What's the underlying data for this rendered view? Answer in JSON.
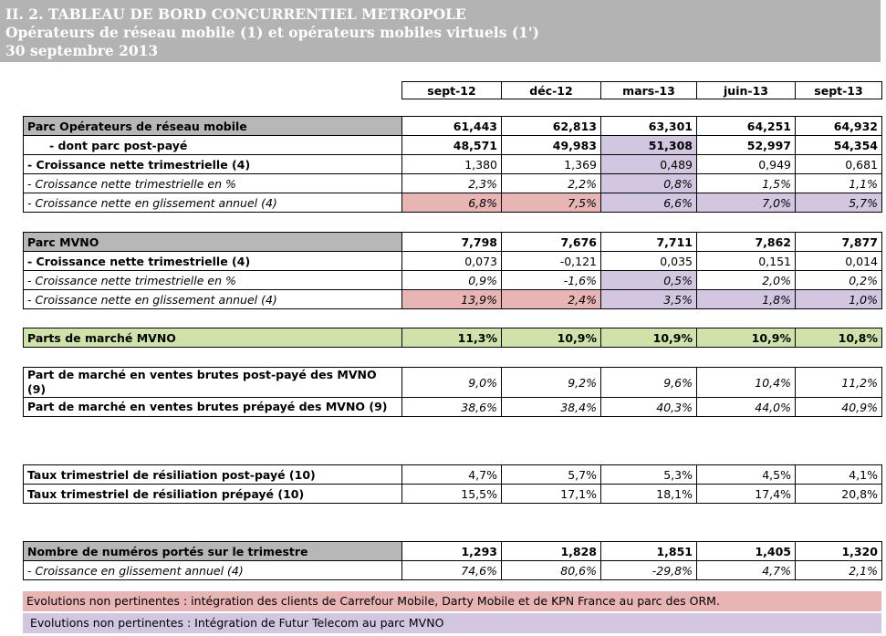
{
  "banner": {
    "title": "II. 2. TABLEAU DE BORD CONCURRENTIEL METROPOLE",
    "subtitle": "Opérateurs de réseau mobile (1) et opérateurs mobiles virtuels (1')",
    "date": "30 septembre 2013"
  },
  "columns": [
    "sept-12",
    "déc-12",
    "mars-13",
    "juin-13",
    "sept-13"
  ],
  "colors": {
    "grey": "#b7b7b7",
    "pink": "#e9b4b4",
    "lavender": "#d2c6e1",
    "green": "#cfe3a8"
  },
  "block1": {
    "rows": [
      {
        "label": "Parc Opérateurs de réseau mobile",
        "values": [
          "61,443",
          "62,813",
          "63,301",
          "64,251",
          "64,932"
        ]
      },
      {
        "label": "- dont parc post-payé",
        "values": [
          "48,571",
          "49,983",
          "51,308",
          "52,997",
          "54,354"
        ]
      },
      {
        "label": "- Croissance nette trimestrielle (4)",
        "values": [
          "1,380",
          "1,369",
          "0,489",
          "0,949",
          "0,681"
        ]
      },
      {
        "label": "- Croissance nette trimestrielle en %",
        "values": [
          "2,3%",
          "2,2%",
          "0,8%",
          "1,5%",
          "1,1%"
        ]
      },
      {
        "label": "- Croissance nette en glissement annuel (4)",
        "values": [
          "6,8%",
          "7,5%",
          "6,6%",
          "7,0%",
          "5,7%"
        ]
      }
    ]
  },
  "block2": {
    "rows": [
      {
        "label": "Parc MVNO",
        "values": [
          "7,798",
          "7,676",
          "7,711",
          "7,862",
          "7,877"
        ]
      },
      {
        "label": "- Croissance nette trimestrielle (4)",
        "values": [
          "0,073",
          "-0,121",
          "0,035",
          "0,151",
          "0,014"
        ]
      },
      {
        "label": "- Croissance nette trimestrielle en %",
        "values": [
          "0,9%",
          "-1,6%",
          "0,5%",
          "2,0%",
          "0,2%"
        ]
      },
      {
        "label": "- Croissance nette en glissement annuel (4)",
        "values": [
          "13,9%",
          "2,4%",
          "3,5%",
          "1,8%",
          "1,0%"
        ]
      }
    ]
  },
  "block3": {
    "rows": [
      {
        "label": "Parts de marché MVNO",
        "values": [
          "11,3%",
          "10,9%",
          "10,9%",
          "10,9%",
          "10,8%"
        ]
      }
    ]
  },
  "block4": {
    "rows": [
      {
        "label": "Part de marché en ventes brutes post-payé des MVNO (9)",
        "values": [
          "9,0%",
          "9,2%",
          "9,6%",
          "10,4%",
          "11,2%"
        ]
      },
      {
        "label": "Part de marché en ventes brutes prépayé des MVNO (9)",
        "values": [
          "38,6%",
          "38,4%",
          "40,3%",
          "44,0%",
          "40,9%"
        ]
      }
    ]
  },
  "block5": {
    "rows": [
      {
        "label": "Taux trimestriel de résiliation post-payé (10)",
        "values": [
          "4,7%",
          "5,7%",
          "5,3%",
          "4,5%",
          "4,1%"
        ]
      },
      {
        "label": "Taux trimestriel de résiliation prépayé (10)",
        "values": [
          "15,5%",
          "17,1%",
          "18,1%",
          "17,4%",
          "20,8%"
        ]
      }
    ]
  },
  "block6": {
    "rows": [
      {
        "label": "Nombre de numéros portés sur le trimestre",
        "values": [
          "1,293",
          "1,828",
          "1,851",
          "1,405",
          "1,320"
        ]
      },
      {
        "label": "- Croissance en glissement annuel (4)",
        "values": [
          "74,6%",
          "80,6%",
          "-29,8%",
          "4,7%",
          "2,1%"
        ]
      }
    ]
  },
  "legends": {
    "pink": "Evolutions non pertinentes : intégration des clients de Carrefour Mobile, Darty Mobile et de KPN France au parc des ORM.",
    "lavender": "Evolutions non pertinentes : Intégration de Futur Telecom au parc MVNO"
  }
}
